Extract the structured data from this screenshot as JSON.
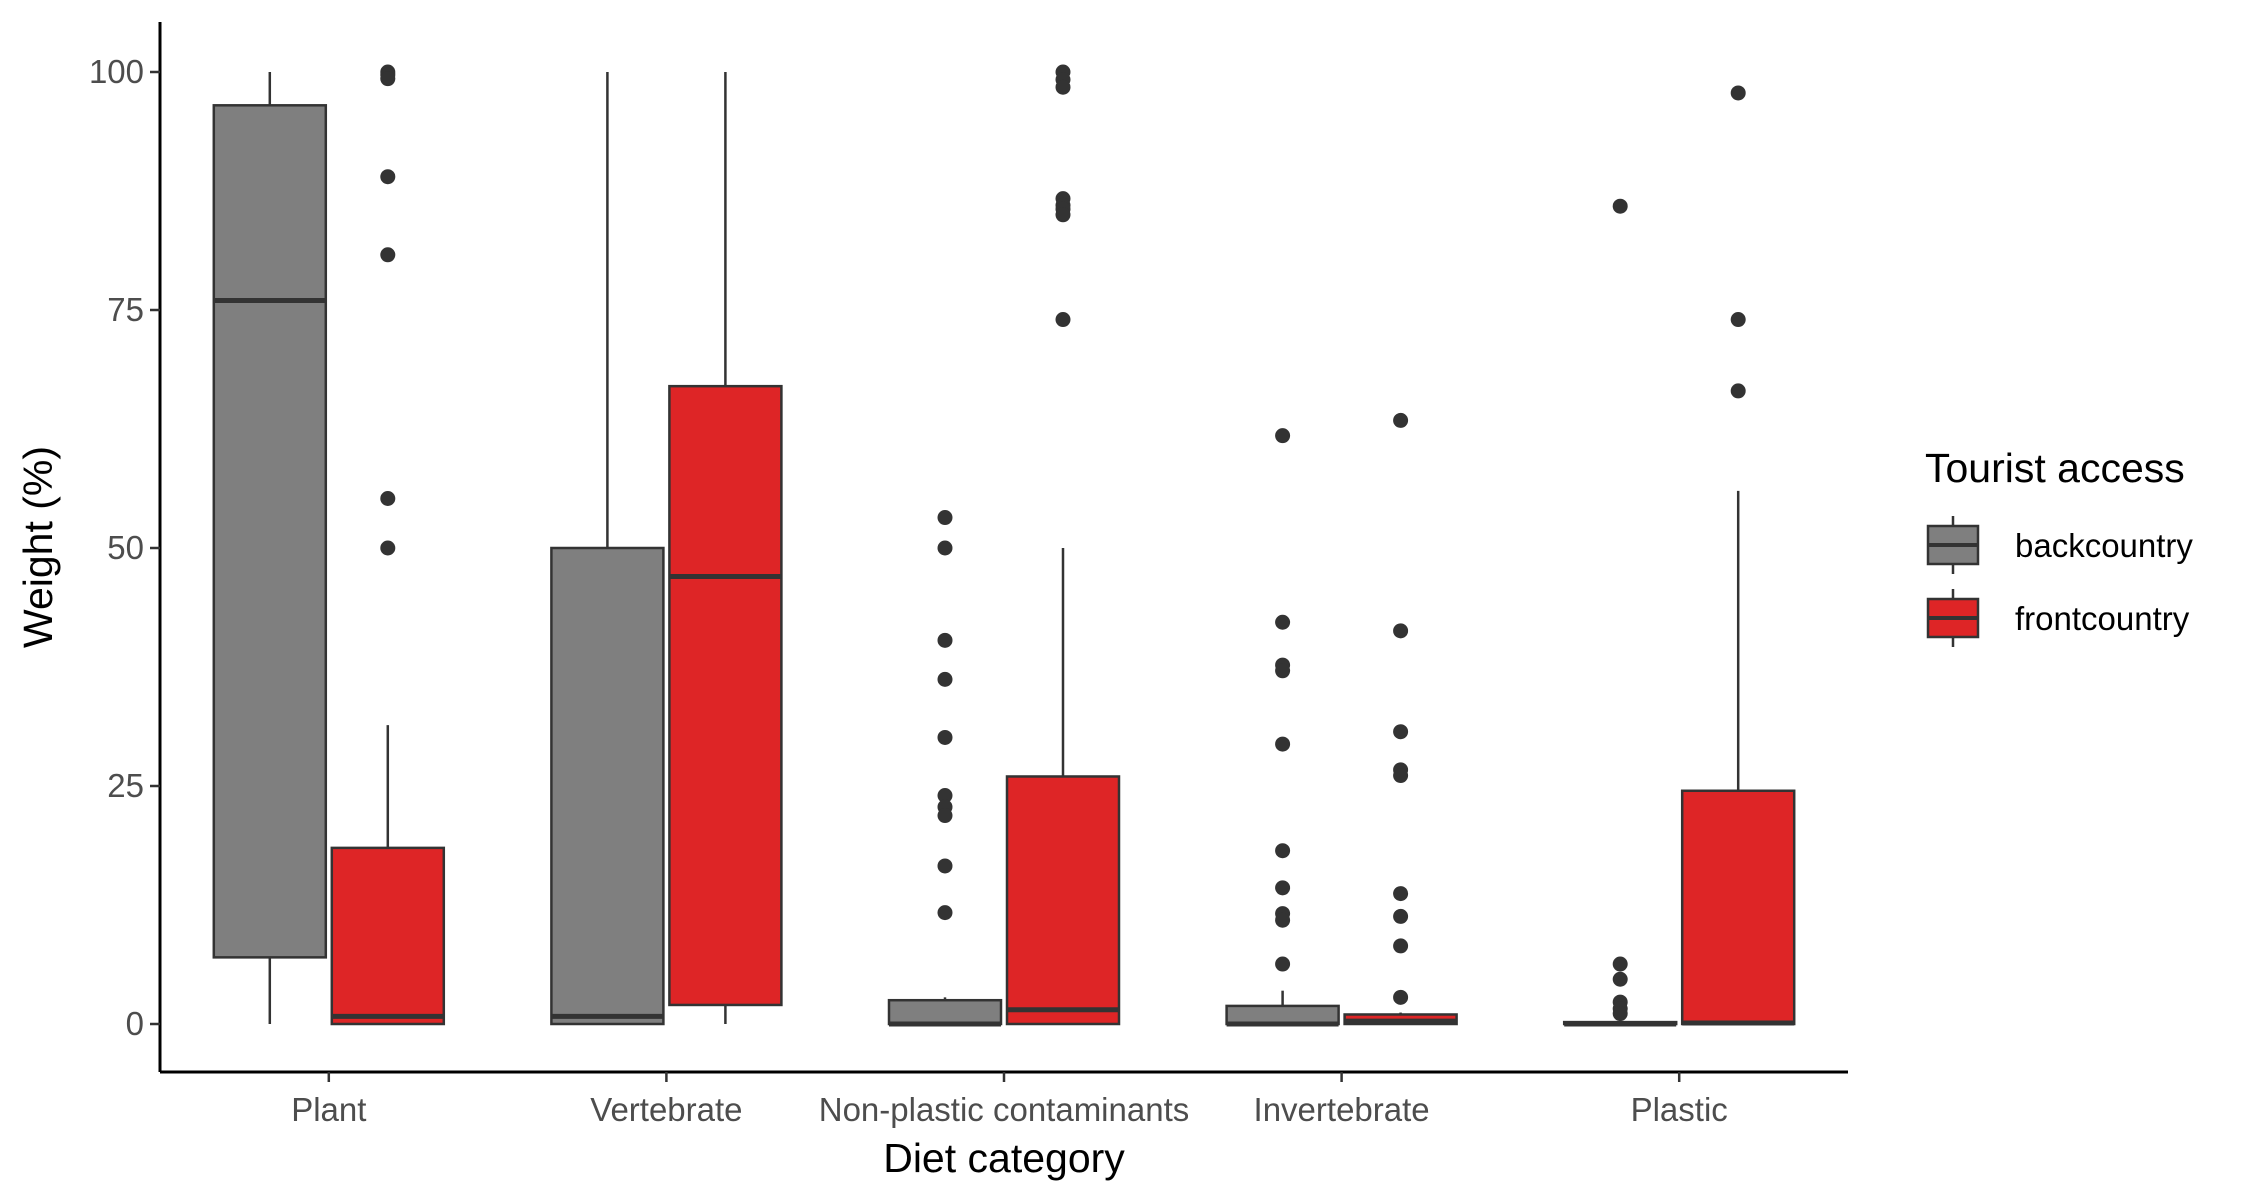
{
  "chart_data": {
    "type": "boxplot",
    "xlabel": "Diet category",
    "ylabel": "Weight (%)",
    "ylim": [
      -5,
      105
    ],
    "yticks": [
      0,
      25,
      50,
      75,
      100
    ],
    "grid": false,
    "legend": {
      "title": "Tourist access",
      "placement": "right",
      "entries": [
        "backcountry",
        "frontcountry"
      ]
    },
    "categories": [
      "Plant",
      "Vertebrate",
      "Non-plastic contaminants",
      "Invertebrate",
      "Plastic"
    ],
    "series": [
      {
        "name": "backcountry",
        "color": "#7f7f7f",
        "boxes": [
          {
            "q1": 7,
            "median": 76,
            "q3": 96.5,
            "whisker_low": 0,
            "whisker_high": 100,
            "outliers": []
          },
          {
            "q1": 0,
            "median": 0.8,
            "q3": 50,
            "whisker_low": 0,
            "whisker_high": 100,
            "outliers": []
          },
          {
            "q1": 0,
            "median": 0,
            "q3": 2.5,
            "whisker_low": 0,
            "whisker_high": 2.8,
            "outliers": [
              53.2,
              50,
              40.3,
              36.2,
              30.1,
              24,
              22.8,
              21.9,
              16.6,
              11.7
            ]
          },
          {
            "q1": 0,
            "median": 0,
            "q3": 1.9,
            "whisker_low": 0,
            "whisker_high": 3.5,
            "outliers": [
              61.8,
              42.2,
              37.7,
              37.1,
              29.4,
              18.2,
              14.3,
              11.6,
              10.9,
              6.3
            ]
          },
          {
            "q1": 0,
            "median": 0,
            "q3": 0.2,
            "whisker_low": 0,
            "whisker_high": 0.4,
            "outliers": [
              85.9,
              6.3,
              4.7,
              2.3,
              1.6,
              1.1
            ]
          }
        ]
      },
      {
        "name": "frontcountry",
        "color": "#de2526",
        "boxes": [
          {
            "q1": 0,
            "median": 0.8,
            "q3": 18.5,
            "whisker_low": 0,
            "whisker_high": 31.4,
            "outliers": [
              100,
              99.7,
              99.3,
              89,
              80.8,
              55.2,
              50
            ]
          },
          {
            "q1": 2,
            "median": 47,
            "q3": 67,
            "whisker_low": 0,
            "whisker_high": 100,
            "outliers": []
          },
          {
            "q1": 0,
            "median": 1.5,
            "q3": 26,
            "whisker_low": 0,
            "whisker_high": 50,
            "outliers": [
              100,
              99.2,
              98.4,
              86.7,
              86,
              85.6,
              85,
              74
            ]
          },
          {
            "q1": 0,
            "median": 0.3,
            "q3": 1,
            "whisker_low": 0,
            "whisker_high": 1.2,
            "outliers": [
              63.4,
              41.3,
              30.7,
              26.7,
              26.1,
              13.7,
              11.3,
              8.2,
              2.8
            ]
          },
          {
            "q1": 0,
            "median": 0.1,
            "q3": 24.5,
            "whisker_low": 0,
            "whisker_high": 56,
            "outliers": [
              97.8,
              74,
              66.5
            ]
          }
        ]
      }
    ]
  }
}
